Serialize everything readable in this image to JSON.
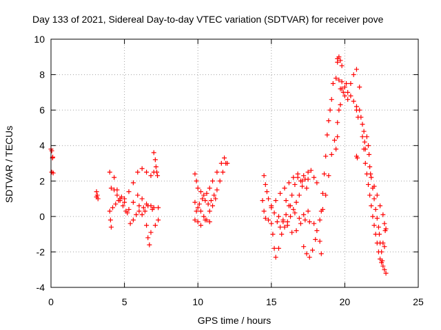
{
  "chart_data": {
    "type": "scatter",
    "title": "Day 133 of 2021, Sidereal Day-to-day VTEC variation (SDTVAR) for receiver pove",
    "xlabel": "GPS time / hours",
    "ylabel": "SDTVAR / TECUs",
    "xlim": [
      0,
      25
    ],
    "ylim": [
      -4,
      10
    ],
    "xticks": [
      0,
      5,
      10,
      15,
      20,
      25
    ],
    "yticks": [
      -4,
      -2,
      0,
      2,
      4,
      6,
      8,
      10
    ],
    "xtick_labels": [
      "0",
      "5",
      "10",
      "15",
      "20",
      "25"
    ],
    "ytick_labels": [
      "-4",
      "-2",
      "0",
      "2",
      "4",
      "6",
      "8",
      "10"
    ],
    "grid": true,
    "marker": "+",
    "marker_color": "#ff0000",
    "series": [
      {
        "name": "sdtvar",
        "points": [
          [
            0.0,
            3.8
          ],
          [
            0.05,
            3.7
          ],
          [
            0.1,
            3.3
          ],
          [
            0.12,
            3.35
          ],
          [
            0.05,
            2.5
          ],
          [
            0.15,
            2.45
          ],
          [
            3.1,
            1.4
          ],
          [
            3.15,
            1.2
          ],
          [
            3.2,
            1.0
          ],
          [
            3.1,
            1.1
          ],
          [
            4.0,
            2.5
          ],
          [
            4.1,
            1.6
          ],
          [
            4.0,
            0.3
          ],
          [
            4.05,
            -0.2
          ],
          [
            4.1,
            -0.6
          ],
          [
            4.3,
            1.5
          ],
          [
            4.5,
            1.2
          ],
          [
            4.7,
            0.9
          ],
          [
            4.9,
            0.6
          ],
          [
            5.1,
            0.3
          ],
          [
            5.3,
            0.4
          ],
          [
            5.6,
            0.8
          ],
          [
            5.9,
            1.2
          ],
          [
            6.2,
            1.0
          ],
          [
            6.5,
            0.7
          ],
          [
            6.8,
            0.6
          ],
          [
            7.0,
            0.5
          ],
          [
            4.2,
            0.5
          ],
          [
            4.4,
            0.7
          ],
          [
            4.6,
            0.9
          ],
          [
            4.8,
            1.1
          ],
          [
            5.0,
            0.8
          ],
          [
            5.2,
            0.2
          ],
          [
            5.4,
            -0.4
          ],
          [
            5.6,
            -0.2
          ],
          [
            5.8,
            0.1
          ],
          [
            6.0,
            0.3
          ],
          [
            6.2,
            0.1
          ],
          [
            4.3,
            2.2
          ],
          [
            4.5,
            1.5
          ],
          [
            4.7,
            1.0
          ],
          [
            5.0,
            1.0
          ],
          [
            5.3,
            1.4
          ],
          [
            5.6,
            1.9
          ],
          [
            5.9,
            2.5
          ],
          [
            6.2,
            2.7
          ],
          [
            6.5,
            2.5
          ],
          [
            6.8,
            2.3
          ],
          [
            7.0,
            2.5
          ],
          [
            6.4,
            0.3
          ],
          [
            6.5,
            -0.5
          ],
          [
            6.6,
            -1.2
          ],
          [
            6.7,
            -1.6
          ],
          [
            6.8,
            -0.9
          ],
          [
            7.1,
            -0.5
          ],
          [
            7.3,
            -0.2
          ],
          [
            6.0,
            0.6
          ],
          [
            6.3,
            0.5
          ],
          [
            6.6,
            0.6
          ],
          [
            6.9,
            0.4
          ],
          [
            7.3,
            0.5
          ],
          [
            7.0,
            3.6
          ],
          [
            7.1,
            3.2
          ],
          [
            7.15,
            2.8
          ],
          [
            7.2,
            2.5
          ],
          [
            7.25,
            2.3
          ],
          [
            9.8,
            2.4
          ],
          [
            9.9,
            2.0
          ],
          [
            10.0,
            1.6
          ],
          [
            10.2,
            1.4
          ],
          [
            10.4,
            1.2
          ],
          [
            10.6,
            1.3
          ],
          [
            10.8,
            1.6
          ],
          [
            11.0,
            2.0
          ],
          [
            11.3,
            2.5
          ],
          [
            11.6,
            3.0
          ],
          [
            11.8,
            3.3
          ],
          [
            12.0,
            3.0
          ],
          [
            9.8,
            0.8
          ],
          [
            10.0,
            0.5
          ],
          [
            10.2,
            0.3
          ],
          [
            10.4,
            0.0
          ],
          [
            10.6,
            -0.2
          ],
          [
            10.8,
            -0.3
          ],
          [
            9.8,
            -0.2
          ],
          [
            9.9,
            0.3
          ],
          [
            10.1,
            0.7
          ],
          [
            10.3,
            1.0
          ],
          [
            10.5,
            0.9
          ],
          [
            10.7,
            0.7
          ],
          [
            10.9,
            0.9
          ],
          [
            11.1,
            1.2
          ],
          [
            11.3,
            1.5
          ],
          [
            11.5,
            2.0
          ],
          [
            11.7,
            2.5
          ],
          [
            11.9,
            3.0
          ],
          [
            10.0,
            -0.3
          ],
          [
            10.2,
            -0.5
          ],
          [
            10.5,
            -0.2
          ],
          [
            10.8,
            0.3
          ],
          [
            11.0,
            0.6
          ],
          [
            11.2,
            1.0
          ],
          [
            14.5,
            2.3
          ],
          [
            14.6,
            1.8
          ],
          [
            14.7,
            1.4
          ],
          [
            14.8,
            1.0
          ],
          [
            15.0,
            0.6
          ],
          [
            15.2,
            0.2
          ],
          [
            15.4,
            -0.3
          ],
          [
            15.6,
            -0.6
          ],
          [
            15.8,
            -0.3
          ],
          [
            16.0,
            0.1
          ],
          [
            16.2,
            0.6
          ],
          [
            16.4,
            1.2
          ],
          [
            16.6,
            1.8
          ],
          [
            16.8,
            2.2
          ],
          [
            17.0,
            2.0
          ],
          [
            17.2,
            2.3
          ],
          [
            17.5,
            2.1
          ],
          [
            14.4,
            0.9
          ],
          [
            14.5,
            0.3
          ],
          [
            14.6,
            -0.1
          ],
          [
            14.8,
            -0.2
          ],
          [
            15.0,
            -0.4
          ],
          [
            15.1,
            -1.0
          ],
          [
            15.2,
            -1.8
          ],
          [
            15.3,
            -2.3
          ],
          [
            15.5,
            -1.8
          ],
          [
            15.7,
            -1.0
          ],
          [
            15.9,
            -0.6
          ],
          [
            16.1,
            -0.3
          ],
          [
            16.3,
            0.0
          ],
          [
            16.5,
            0.4
          ],
          [
            16.7,
            0.8
          ],
          [
            16.9,
            1.2
          ],
          [
            17.1,
            1.7
          ],
          [
            17.3,
            2.1
          ],
          [
            17.5,
            2.5
          ],
          [
            17.7,
            2.6
          ],
          [
            17.9,
            2.2
          ],
          [
            18.1,
            1.9
          ],
          [
            15.0,
            0.5
          ],
          [
            15.3,
            0.9
          ],
          [
            15.6,
            1.3
          ],
          [
            15.9,
            1.6
          ],
          [
            16.2,
            1.9
          ],
          [
            16.5,
            2.2
          ],
          [
            16.8,
            2.4
          ],
          [
            17.1,
            2.0
          ],
          [
            17.4,
            1.6
          ],
          [
            15.5,
            0.0
          ],
          [
            15.8,
            -0.2
          ],
          [
            16.1,
            -0.5
          ],
          [
            16.4,
            -0.9
          ],
          [
            16.7,
            -0.8
          ],
          [
            17.0,
            -0.4
          ],
          [
            17.3,
            -0.2
          ],
          [
            17.6,
            -0.3
          ],
          [
            17.9,
            -0.4
          ],
          [
            18.1,
            -0.8
          ],
          [
            18.3,
            -1.4
          ],
          [
            18.4,
            -2.1
          ],
          [
            17.2,
            -1.7
          ],
          [
            17.4,
            -2.1
          ],
          [
            17.6,
            -2.3
          ],
          [
            17.8,
            -1.9
          ],
          [
            18.0,
            -1.3
          ],
          [
            16.0,
            0.9
          ],
          [
            16.3,
            0.6
          ],
          [
            16.6,
            0.2
          ],
          [
            16.9,
            -0.1
          ],
          [
            17.2,
            0.1
          ],
          [
            17.5,
            0.3
          ],
          [
            18.4,
            0.3
          ],
          [
            18.5,
            1.3
          ],
          [
            18.6,
            2.4
          ],
          [
            18.7,
            3.4
          ],
          [
            18.8,
            4.6
          ],
          [
            18.9,
            5.4
          ],
          [
            19.0,
            6.0
          ],
          [
            19.1,
            6.6
          ],
          [
            18.3,
            -0.2
          ],
          [
            18.5,
            0.4
          ],
          [
            18.7,
            1.2
          ],
          [
            18.9,
            2.3
          ],
          [
            19.1,
            3.5
          ],
          [
            19.3,
            4.3
          ],
          [
            19.5,
            5.3
          ],
          [
            19.7,
            6.3
          ],
          [
            19.9,
            7.0
          ],
          [
            20.1,
            7.5
          ],
          [
            19.4,
            3.8
          ],
          [
            19.5,
            4.5
          ],
          [
            19.6,
            6.0
          ],
          [
            19.7,
            7.2
          ],
          [
            19.8,
            7.6
          ],
          [
            20.0,
            7.3
          ],
          [
            20.2,
            7.0
          ],
          [
            20.4,
            6.8
          ],
          [
            20.6,
            6.5
          ],
          [
            20.8,
            6.2
          ],
          [
            19.2,
            7.5
          ],
          [
            19.4,
            7.8
          ],
          [
            19.6,
            7.7
          ],
          [
            19.8,
            7.2
          ],
          [
            20.0,
            6.8
          ],
          [
            20.2,
            6.6
          ],
          [
            20.4,
            7.5
          ],
          [
            20.6,
            8.0
          ],
          [
            20.8,
            8.3
          ],
          [
            21.0,
            7.3
          ],
          [
            19.5,
            8.9
          ],
          [
            19.6,
            9.0
          ],
          [
            19.7,
            8.8
          ],
          [
            19.8,
            8.5
          ],
          [
            19.5,
            8.7
          ],
          [
            20.8,
            6.0
          ],
          [
            20.9,
            5.6
          ],
          [
            20.8,
            3.4
          ],
          [
            20.85,
            3.3
          ],
          [
            21.0,
            6.0
          ],
          [
            21.1,
            5.6
          ],
          [
            21.2,
            5.2
          ],
          [
            21.3,
            4.8
          ],
          [
            21.35,
            4.2
          ],
          [
            21.4,
            3.8
          ],
          [
            21.5,
            4.5
          ],
          [
            21.6,
            4.0
          ],
          [
            21.65,
            3.5
          ],
          [
            21.7,
            2.8
          ],
          [
            21.75,
            2.4
          ],
          [
            21.8,
            2.2
          ],
          [
            21.9,
            1.6
          ],
          [
            22.0,
            1.0
          ],
          [
            22.1,
            0.4
          ],
          [
            22.2,
            -0.1
          ],
          [
            22.3,
            -0.6
          ],
          [
            22.35,
            -1.0
          ],
          [
            22.4,
            -1.5
          ],
          [
            22.5,
            -2.0
          ],
          [
            22.55,
            -2.5
          ],
          [
            22.6,
            -2.8
          ],
          [
            22.7,
            -3.0
          ],
          [
            22.8,
            -3.2
          ],
          [
            21.2,
            4.5
          ],
          [
            21.3,
            3.8
          ],
          [
            21.4,
            3.0
          ],
          [
            21.5,
            2.4
          ],
          [
            21.6,
            1.8
          ],
          [
            21.7,
            1.2
          ],
          [
            21.8,
            0.6
          ],
          [
            21.9,
            0.0
          ],
          [
            22.0,
            -0.5
          ],
          [
            22.1,
            -1.0
          ],
          [
            22.2,
            -1.5
          ],
          [
            22.3,
            -2.0
          ],
          [
            22.4,
            -2.4
          ],
          [
            22.5,
            -2.6
          ],
          [
            22.0,
            1.7
          ],
          [
            22.2,
            1.2
          ],
          [
            22.4,
            0.6
          ],
          [
            22.6,
            0.1
          ],
          [
            22.7,
            -0.4
          ],
          [
            22.75,
            -0.8
          ],
          [
            22.8,
            -0.7
          ],
          [
            22.6,
            -1.5
          ],
          [
            22.7,
            -1.7
          ]
        ]
      }
    ]
  }
}
